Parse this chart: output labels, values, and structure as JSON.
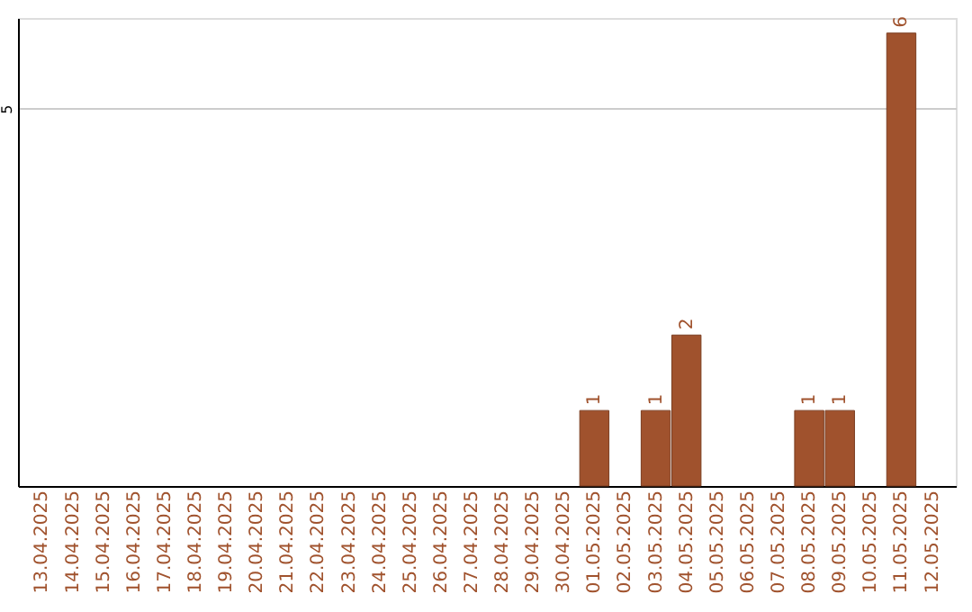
{
  "chart_data": {
    "type": "bar",
    "categories": [
      "13.04.2025",
      "14.04.2025",
      "15.04.2025",
      "16.04.2025",
      "17.04.2025",
      "18.04.2025",
      "19.04.2025",
      "20.04.2025",
      "21.04.2025",
      "22.04.2025",
      "23.04.2025",
      "24.04.2025",
      "25.04.2025",
      "26.04.2025",
      "27.04.2025",
      "28.04.2025",
      "29.04.2025",
      "30.04.2025",
      "01.05.2025",
      "02.05.2025",
      "03.05.2025",
      "04.05.2025",
      "05.05.2025",
      "06.05.2025",
      "07.05.2025",
      "08.05.2025",
      "09.05.2025",
      "10.05.2025",
      "11.05.2025",
      "12.05.2025"
    ],
    "values": [
      null,
      null,
      null,
      null,
      null,
      null,
      null,
      null,
      null,
      null,
      null,
      null,
      null,
      null,
      null,
      null,
      null,
      null,
      1,
      null,
      1,
      2,
      null,
      null,
      null,
      1,
      1,
      null,
      6,
      null
    ],
    "color": "#a0522d",
    "ylim": [
      0,
      6.2
    ],
    "yticks": [
      5
    ],
    "grid": "y",
    "data_labels": true
  }
}
